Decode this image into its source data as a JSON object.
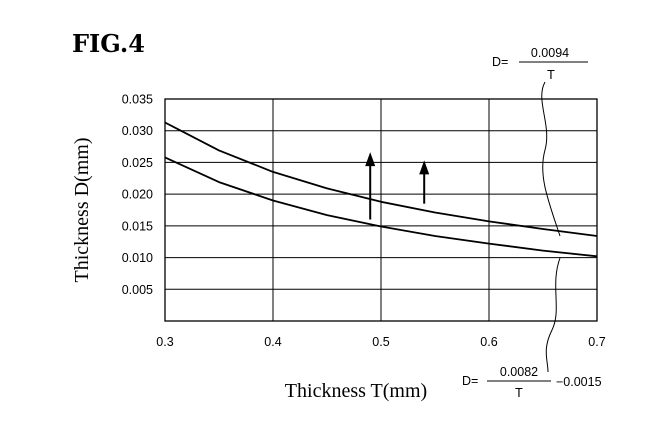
{
  "figure_label": "FIG.4",
  "chart_data": {
    "type": "line",
    "title": "",
    "xlabel": "Thickness T(mm)",
    "ylabel": "Thickness D(mm)",
    "xlim": [
      0.3,
      0.7
    ],
    "ylim": [
      0,
      0.035
    ],
    "x_ticks": [
      "0.3",
      "0.4",
      "0.5",
      "0.6",
      "0.7"
    ],
    "y_ticks": [
      "0.005",
      "0.010",
      "0.015",
      "0.020",
      "0.025",
      "0.030",
      "0.035"
    ],
    "grid": true,
    "series": [
      {
        "x": [
          0.3,
          0.35,
          0.4,
          0.45,
          0.5,
          0.55,
          0.6,
          0.65,
          0.7
        ],
        "y": [
          0.0313,
          0.0269,
          0.0235,
          0.0209,
          0.0188,
          0.0171,
          0.0157,
          0.0145,
          0.0134
        ]
      },
      {
        "x": [
          0.3,
          0.35,
          0.4,
          0.45,
          0.5,
          0.55,
          0.6,
          0.65,
          0.7
        ],
        "y": [
          0.0258,
          0.0219,
          0.019,
          0.0167,
          0.0149,
          0.0134,
          0.0122,
          0.0111,
          0.0102
        ]
      }
    ],
    "annotations": [
      {
        "type": "arrow",
        "x": 0.49,
        "y_from": 0.016,
        "y_to": 0.0263
      },
      {
        "type": "arrow",
        "x": 0.54,
        "y_from": 0.0185,
        "y_to": 0.025
      }
    ],
    "formulas": [
      {
        "prefix": "D=",
        "numerator": "0.0094",
        "denominator": "T",
        "suffix": ""
      },
      {
        "prefix": "D=",
        "numerator": "0.0082",
        "denominator": "T",
        "suffix": "−0.0015"
      }
    ]
  }
}
